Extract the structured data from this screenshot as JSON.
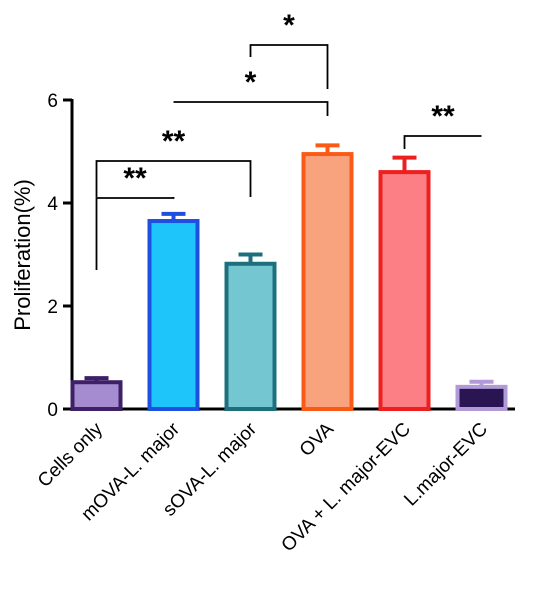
{
  "chart_data": {
    "type": "bar",
    "ylabel": "Proliferation(%)",
    "ylim": [
      0,
      6
    ],
    "yticks": [
      "0",
      "2",
      "4",
      "6"
    ],
    "categories": [
      "Cells only",
      "mOVA-L. major",
      "sOVA-L. major",
      "OVA",
      "OVA + L. major-EVC",
      "L.major-EVC"
    ],
    "values": [
      0.52,
      3.65,
      2.82,
      4.95,
      4.6,
      0.43
    ],
    "errors": [
      0.08,
      0.14,
      0.18,
      0.17,
      0.28,
      0.1
    ],
    "fill_colors": [
      "#a58bd0",
      "#1ec5fb",
      "#74c7d0",
      "#f9a27e",
      "#fb7f85",
      "#2a1553"
    ],
    "edge_colors": [
      "#3d2068",
      "#1d4fe0",
      "#1d6f7e",
      "#fa5a16",
      "#ee1f1f",
      "#b29ad8"
    ],
    "significance": [
      {
        "from": "Cells only",
        "to": "mOVA-L. major",
        "label": "**"
      },
      {
        "from": "Cells only",
        "to": "sOVA-L. major",
        "label": "**"
      },
      {
        "from": "mOVA-L. major",
        "to": "OVA",
        "label": "*"
      },
      {
        "from": "sOVA-L. major",
        "to": "OVA",
        "label": "*"
      },
      {
        "from": "L.major-EVC",
        "to": "OVA + L. major-EVC",
        "label": "**"
      }
    ]
  }
}
